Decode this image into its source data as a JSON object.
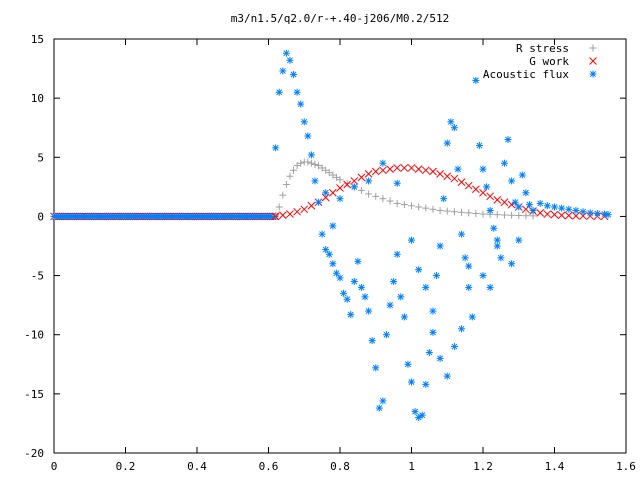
{
  "chart_data": {
    "type": "scatter",
    "title": "m3/n1.5/q2.0/r-+.40-j206/M0.2/512",
    "xlabel": "",
    "ylabel": "",
    "xlim": [
      0,
      1.6
    ],
    "ylim": [
      -20,
      15
    ],
    "x_ticks": [
      0,
      0.2,
      0.4,
      0.6,
      0.8,
      1.0,
      1.2,
      1.4,
      1.6
    ],
    "x_tick_labels": [
      "0",
      "0.2",
      "0.4",
      "0.6",
      "0.8",
      "1",
      "1.2",
      "1.4",
      "1.6"
    ],
    "y_ticks": [
      -20,
      -15,
      -10,
      -5,
      0,
      5,
      10,
      15
    ],
    "y_tick_labels": [
      "-20",
      "-15",
      "-10",
      "-5",
      "0",
      "5",
      "10",
      "15"
    ],
    "grid": false,
    "legend_position": "top-right",
    "series": [
      {
        "name": "R stress",
        "marker": "plus",
        "color": "#a0a0a0",
        "points": [
          [
            0.62,
            0.1
          ],
          [
            0.63,
            0.8
          ],
          [
            0.64,
            1.8
          ],
          [
            0.65,
            2.7
          ],
          [
            0.66,
            3.4
          ],
          [
            0.67,
            3.9
          ],
          [
            0.68,
            4.3
          ],
          [
            0.69,
            4.5
          ],
          [
            0.7,
            4.6
          ],
          [
            0.71,
            4.6
          ],
          [
            0.72,
            4.5
          ],
          [
            0.73,
            4.4
          ],
          [
            0.74,
            4.3
          ],
          [
            0.75,
            4.1
          ],
          [
            0.76,
            3.9
          ],
          [
            0.77,
            3.7
          ],
          [
            0.78,
            3.5
          ],
          [
            0.79,
            3.3
          ],
          [
            0.8,
            3.1
          ],
          [
            0.82,
            2.8
          ],
          [
            0.84,
            2.5
          ],
          [
            0.86,
            2.2
          ],
          [
            0.88,
            1.9
          ],
          [
            0.9,
            1.7
          ],
          [
            0.92,
            1.5
          ],
          [
            0.94,
            1.3
          ],
          [
            0.96,
            1.1
          ],
          [
            0.98,
            1.0
          ],
          [
            1.0,
            0.9
          ],
          [
            1.02,
            0.8
          ],
          [
            1.04,
            0.7
          ],
          [
            1.06,
            0.6
          ],
          [
            1.08,
            0.5
          ],
          [
            1.1,
            0.45
          ],
          [
            1.12,
            0.4
          ],
          [
            1.14,
            0.35
          ],
          [
            1.16,
            0.3
          ],
          [
            1.18,
            0.25
          ],
          [
            1.2,
            0.2
          ],
          [
            1.22,
            0.18
          ],
          [
            1.24,
            0.15
          ],
          [
            1.26,
            0.12
          ],
          [
            1.28,
            0.1
          ],
          [
            1.3,
            0.08
          ],
          [
            1.32,
            0.06
          ],
          [
            1.34,
            0.05
          ]
        ]
      },
      {
        "name": "G work",
        "marker": "cross",
        "color": "#ff0000",
        "points": [
          [
            0.62,
            0.0
          ],
          [
            0.64,
            0.1
          ],
          [
            0.66,
            0.2
          ],
          [
            0.68,
            0.4
          ],
          [
            0.7,
            0.6
          ],
          [
            0.72,
            0.9
          ],
          [
            0.74,
            1.2
          ],
          [
            0.76,
            1.6
          ],
          [
            0.78,
            2.0
          ],
          [
            0.8,
            2.4
          ],
          [
            0.82,
            2.7
          ],
          [
            0.84,
            3.0
          ],
          [
            0.86,
            3.3
          ],
          [
            0.88,
            3.6
          ],
          [
            0.9,
            3.8
          ],
          [
            0.92,
            3.9
          ],
          [
            0.94,
            4.0
          ],
          [
            0.96,
            4.1
          ],
          [
            0.98,
            4.1
          ],
          [
            1.0,
            4.1
          ],
          [
            1.02,
            4.0
          ],
          [
            1.04,
            3.9
          ],
          [
            1.06,
            3.8
          ],
          [
            1.08,
            3.6
          ],
          [
            1.1,
            3.4
          ],
          [
            1.12,
            3.2
          ],
          [
            1.14,
            2.9
          ],
          [
            1.16,
            2.6
          ],
          [
            1.18,
            2.3
          ],
          [
            1.2,
            2.0
          ],
          [
            1.22,
            1.7
          ],
          [
            1.24,
            1.4
          ],
          [
            1.26,
            1.2
          ],
          [
            1.28,
            1.0
          ],
          [
            1.3,
            0.8
          ],
          [
            1.32,
            0.6
          ],
          [
            1.34,
            0.45
          ],
          [
            1.36,
            0.3
          ],
          [
            1.38,
            0.2
          ],
          [
            1.4,
            0.15
          ],
          [
            1.42,
            0.1
          ],
          [
            1.44,
            0.08
          ],
          [
            1.46,
            0.05
          ],
          [
            1.48,
            0.04
          ],
          [
            1.5,
            0.03
          ],
          [
            1.52,
            0.02
          ],
          [
            1.54,
            0.01
          ]
        ]
      },
      {
        "name": "Acoustic flux",
        "marker": "star",
        "color": "#0080ff",
        "points": [
          [
            0.62,
            5.8
          ],
          [
            0.63,
            10.5
          ],
          [
            0.64,
            12.3
          ],
          [
            0.65,
            13.8
          ],
          [
            0.66,
            13.2
          ],
          [
            0.67,
            12.0
          ],
          [
            0.68,
            10.5
          ],
          [
            0.69,
            9.5
          ],
          [
            0.7,
            8.0
          ],
          [
            0.71,
            6.8
          ],
          [
            0.72,
            5.2
          ],
          [
            0.73,
            3.0
          ],
          [
            0.74,
            1.2
          ],
          [
            0.75,
            -1.5
          ],
          [
            0.76,
            -2.8
          ],
          [
            0.77,
            -3.2
          ],
          [
            0.78,
            -4.0
          ],
          [
            0.79,
            -4.8
          ],
          [
            0.8,
            -5.2
          ],
          [
            0.81,
            -6.5
          ],
          [
            0.82,
            -7.0
          ],
          [
            0.83,
            -8.3
          ],
          [
            0.84,
            -5.5
          ],
          [
            0.85,
            -3.8
          ],
          [
            0.86,
            -6.0
          ],
          [
            0.87,
            -6.8
          ],
          [
            0.88,
            -8.0
          ],
          [
            0.89,
            -10.5
          ],
          [
            0.9,
            -12.8
          ],
          [
            0.91,
            -16.2
          ],
          [
            0.92,
            -15.6
          ],
          [
            0.93,
            -10.0
          ],
          [
            0.94,
            -7.5
          ],
          [
            0.95,
            -5.5
          ],
          [
            0.96,
            -3.2
          ],
          [
            0.97,
            -6.8
          ],
          [
            0.98,
            -8.5
          ],
          [
            0.99,
            -12.5
          ],
          [
            1.0,
            -14.0
          ],
          [
            1.01,
            -16.5
          ],
          [
            1.02,
            -17.0
          ],
          [
            1.03,
            -16.8
          ],
          [
            1.04,
            -14.2
          ],
          [
            1.05,
            -11.5
          ],
          [
            1.06,
            -8.0
          ],
          [
            1.07,
            -5.0
          ],
          [
            1.08,
            -2.5
          ],
          [
            1.09,
            1.5
          ],
          [
            1.1,
            6.2
          ],
          [
            1.11,
            8.0
          ],
          [
            1.12,
            7.5
          ],
          [
            1.13,
            4.0
          ],
          [
            1.14,
            -1.5
          ],
          [
            1.15,
            -3.5
          ],
          [
            1.16,
            -6.0
          ],
          [
            1.17,
            -8.5
          ],
          [
            1.18,
            11.5
          ],
          [
            1.19,
            6.0
          ],
          [
            1.2,
            4.0
          ],
          [
            1.21,
            2.5
          ],
          [
            1.22,
            0.5
          ],
          [
            1.23,
            -1.0
          ],
          [
            1.24,
            -2.5
          ],
          [
            1.25,
            -3.5
          ],
          [
            1.26,
            4.5
          ],
          [
            1.27,
            6.5
          ],
          [
            1.28,
            3.0
          ],
          [
            1.29,
            1.2
          ],
          [
            1.3,
            0.8
          ],
          [
            1.31,
            3.5
          ],
          [
            1.32,
            2.0
          ],
          [
            1.33,
            1.0
          ],
          [
            1.34,
            0.5
          ],
          [
            1.36,
            1.1
          ],
          [
            1.38,
            0.9
          ],
          [
            1.4,
            0.8
          ],
          [
            1.42,
            0.7
          ],
          [
            1.44,
            0.6
          ],
          [
            1.46,
            0.5
          ],
          [
            1.48,
            0.4
          ],
          [
            1.5,
            0.3
          ],
          [
            1.52,
            0.25
          ],
          [
            1.54,
            0.2
          ],
          [
            1.55,
            0.15
          ],
          [
            0.76,
            2.0
          ],
          [
            0.78,
            -0.8
          ],
          [
            0.8,
            1.5
          ],
          [
            0.84,
            2.5
          ],
          [
            0.88,
            3.0
          ],
          [
            0.92,
            4.5
          ],
          [
            0.96,
            2.8
          ],
          [
            1.0,
            -2.0
          ],
          [
            1.02,
            -4.5
          ],
          [
            1.04,
            -6.0
          ],
          [
            1.06,
            -9.8
          ],
          [
            1.08,
            -12.0
          ],
          [
            1.1,
            -13.5
          ],
          [
            1.12,
            -11.0
          ],
          [
            1.14,
            -9.5
          ],
          [
            1.16,
            -4.2
          ],
          [
            1.2,
            -5.0
          ],
          [
            1.22,
            -6.0
          ],
          [
            1.24,
            -2.0
          ],
          [
            1.28,
            -4.0
          ],
          [
            1.3,
            -2.0
          ]
        ],
        "baseline_x": [
          0,
          0.62
        ],
        "baseline_y": 0
      }
    ]
  }
}
